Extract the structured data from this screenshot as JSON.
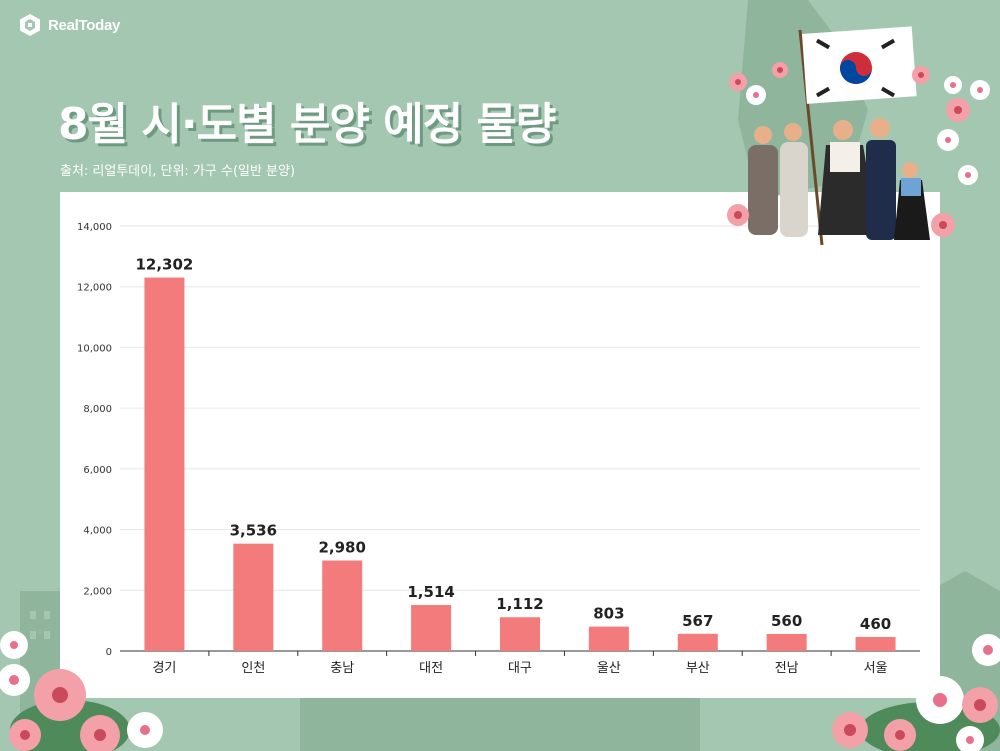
{
  "brand": {
    "logo_text": "RealToday"
  },
  "header": {
    "title": "8월 시·도별 분양 예정 물량",
    "source": "출처: 리얼투데이, 단위: 가구 수(일반 분양)"
  },
  "colors": {
    "background": "#a3c7b0",
    "bar": "#f47b7b",
    "card": "#ffffff"
  },
  "chart_data": {
    "type": "bar",
    "title": "8월 시·도별 분양 예정 물량",
    "categories": [
      "경기",
      "인천",
      "충남",
      "대전",
      "대구",
      "울산",
      "부산",
      "전남",
      "서울"
    ],
    "values": [
      12302,
      3536,
      2980,
      1514,
      1112,
      803,
      567,
      560,
      460
    ],
    "data_labels": [
      "12,302",
      "3,536",
      "2,980",
      "1,514",
      "1,112",
      "803",
      "567",
      "560",
      "460"
    ],
    "ylim": [
      0,
      14000
    ],
    "yticks": [
      0,
      2000,
      4000,
      6000,
      8000,
      10000,
      12000,
      14000
    ],
    "ytick_labels": [
      "0",
      "2,000",
      "4,000",
      "6,000",
      "8,000",
      "10,000",
      "12,000",
      "14,000"
    ],
    "xlabel": "",
    "ylabel": "",
    "grid": true
  }
}
